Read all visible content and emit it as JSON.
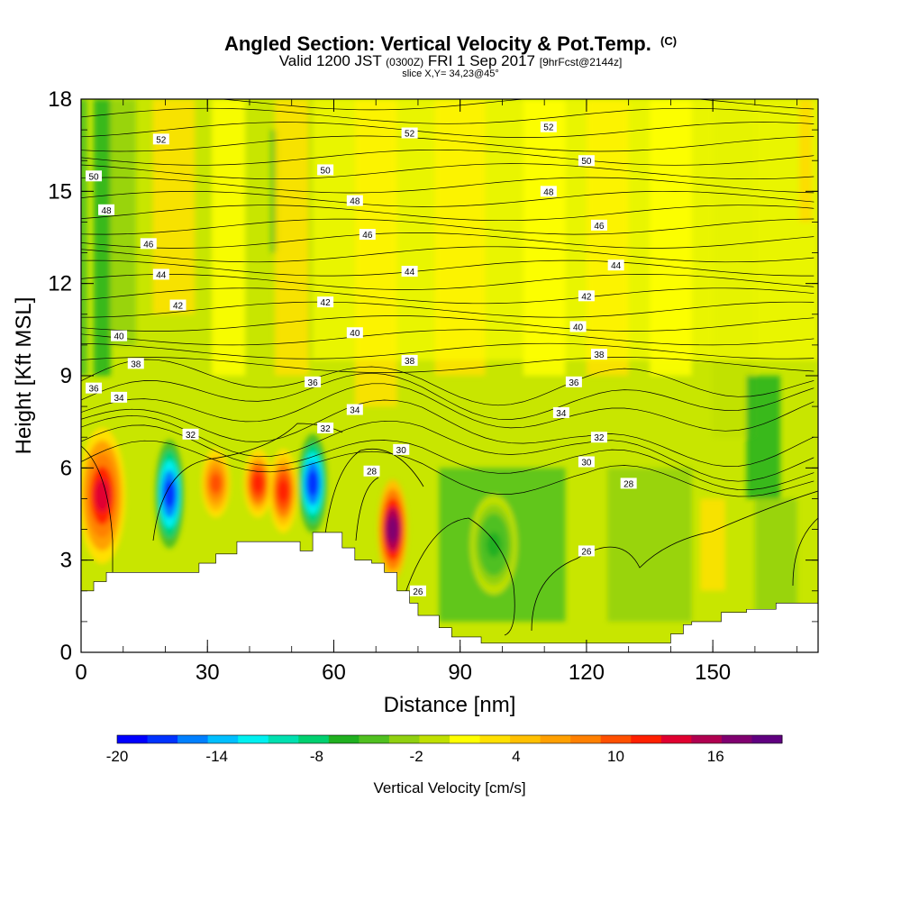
{
  "header": {
    "title": "Angled Section: Vertical Velocity & Pot.Temp.",
    "title_unit": "(C)",
    "subtitle_a": "Valid 1200 JST",
    "subtitle_b": "(0300Z)",
    "subtitle_c": "FRI 1 Sep 2017",
    "subtitle_d": "[9hrFcst@2144z]",
    "slice": "slice X,Y= 34,23@45°"
  },
  "chart_data": {
    "type": "heatmap",
    "xlabel": "Distance [nm]",
    "ylabel": "Height [Kft MSL]",
    "xlim": [
      0,
      175
    ],
    "ylim": [
      0,
      18
    ],
    "xticks": [
      0,
      30,
      60,
      90,
      120,
      150
    ],
    "yticks": [
      0,
      3,
      6,
      9,
      12,
      15,
      18
    ],
    "colorbar": {
      "label": "Vertical Velocity [cm/s]",
      "tick_values": [
        -20,
        -14,
        -8,
        -2,
        4,
        10,
        16
      ],
      "range": [
        -20,
        20
      ],
      "colors": [
        "#0000ff",
        "#0033ff",
        "#0080ff",
        "#00bfff",
        "#00f0f0",
        "#00e0b0",
        "#00d070",
        "#20b020",
        "#50c020",
        "#90d010",
        "#c0e000",
        "#ffff00",
        "#ffe000",
        "#ffc000",
        "#ffa000",
        "#ff8000",
        "#ff5000",
        "#ff2000",
        "#e00030",
        "#b00050",
        "#800070",
        "#600080"
      ]
    },
    "velocity_features": [
      {
        "x": 5,
        "z_range": [
          3,
          7.2
        ],
        "value": 14,
        "sign": "updraft"
      },
      {
        "x": 21,
        "z_range": [
          3.5,
          6.8
        ],
        "value": -18,
        "sign": "downdraft"
      },
      {
        "x": 32,
        "z_range": [
          4.5,
          6.5
        ],
        "value": 10,
        "sign": "updraft"
      },
      {
        "x": 42,
        "z_range": [
          4.5,
          6.5
        ],
        "value": 12,
        "sign": "updraft"
      },
      {
        "x": 48,
        "z_range": [
          4,
          6.5
        ],
        "value": 12,
        "sign": "updraft"
      },
      {
        "x": 55,
        "z_range": [
          4,
          7
        ],
        "value": -18,
        "sign": "downdraft"
      },
      {
        "x": 74,
        "z_range": [
          2.5,
          5.5
        ],
        "value": 18,
        "sign": "updraft"
      },
      {
        "x": 98,
        "z_range": [
          2,
          5
        ],
        "value": -6,
        "sign": "downdraft"
      }
    ],
    "terrain_kft": {
      "x": [
        0,
        3,
        6,
        13,
        28,
        32,
        37,
        50,
        52,
        55,
        58,
        62,
        65,
        69,
        72,
        75,
        78,
        80,
        85,
        88,
        95,
        130,
        140,
        143,
        145,
        152,
        158,
        165,
        175
      ],
      "z": [
        2,
        2.3,
        2.6,
        2.6,
        2.9,
        3.2,
        3.6,
        3.6,
        3.3,
        3.9,
        3.9,
        3.4,
        3.0,
        2.9,
        2.6,
        2.0,
        1.6,
        1.2,
        0.8,
        0.5,
        0.3,
        0.3,
        0.6,
        0.9,
        1.0,
        1.3,
        1.4,
        1.6,
        1.6
      ]
    },
    "isentrope_labels": [
      {
        "value": "52",
        "x": 19,
        "z": 16.7
      },
      {
        "value": "52",
        "x": 78,
        "z": 16.9
      },
      {
        "value": "52",
        "x": 111,
        "z": 17.1
      },
      {
        "value": "50",
        "x": 3,
        "z": 15.5
      },
      {
        "value": "50",
        "x": 58,
        "z": 15.7
      },
      {
        "value": "50",
        "x": 120,
        "z": 16.0
      },
      {
        "value": "48",
        "x": 6,
        "z": 14.4
      },
      {
        "value": "48",
        "x": 65,
        "z": 14.7
      },
      {
        "value": "48",
        "x": 111,
        "z": 15.0
      },
      {
        "value": "46",
        "x": 16,
        "z": 13.3
      },
      {
        "value": "46",
        "x": 68,
        "z": 13.6
      },
      {
        "value": "46",
        "x": 123,
        "z": 13.9
      },
      {
        "value": "44",
        "x": 19,
        "z": 12.3
      },
      {
        "value": "44",
        "x": 78,
        "z": 12.4
      },
      {
        "value": "44",
        "x": 127,
        "z": 12.6
      },
      {
        "value": "42",
        "x": 23,
        "z": 11.3
      },
      {
        "value": "42",
        "x": 58,
        "z": 11.4
      },
      {
        "value": "42",
        "x": 120,
        "z": 11.6
      },
      {
        "value": "40",
        "x": 9,
        "z": 10.3
      },
      {
        "value": "40",
        "x": 65,
        "z": 10.4
      },
      {
        "value": "40",
        "x": 118,
        "z": 10.6
      },
      {
        "value": "38",
        "x": 13,
        "z": 9.4
      },
      {
        "value": "38",
        "x": 78,
        "z": 9.5
      },
      {
        "value": "38",
        "x": 123,
        "z": 9.7
      },
      {
        "value": "36",
        "x": 3,
        "z": 8.6
      },
      {
        "value": "36",
        "x": 55,
        "z": 8.8
      },
      {
        "value": "36",
        "x": 117,
        "z": 8.8
      },
      {
        "value": "34",
        "x": 9,
        "z": 8.3
      },
      {
        "value": "34",
        "x": 65,
        "z": 7.9
      },
      {
        "value": "34",
        "x": 114,
        "z": 7.8
      },
      {
        "value": "32",
        "x": 26,
        "z": 7.1
      },
      {
        "value": "32",
        "x": 58,
        "z": 7.3
      },
      {
        "value": "32",
        "x": 123,
        "z": 7.0
      },
      {
        "value": "30",
        "x": 76,
        "z": 6.6
      },
      {
        "value": "30",
        "x": 120,
        "z": 6.2
      },
      {
        "value": "28",
        "x": 69,
        "z": 5.9
      },
      {
        "value": "28",
        "x": 130,
        "z": 5.5
      },
      {
        "value": "26",
        "x": 80,
        "z": 2.0
      },
      {
        "value": "26",
        "x": 120,
        "z": 3.3
      }
    ]
  }
}
